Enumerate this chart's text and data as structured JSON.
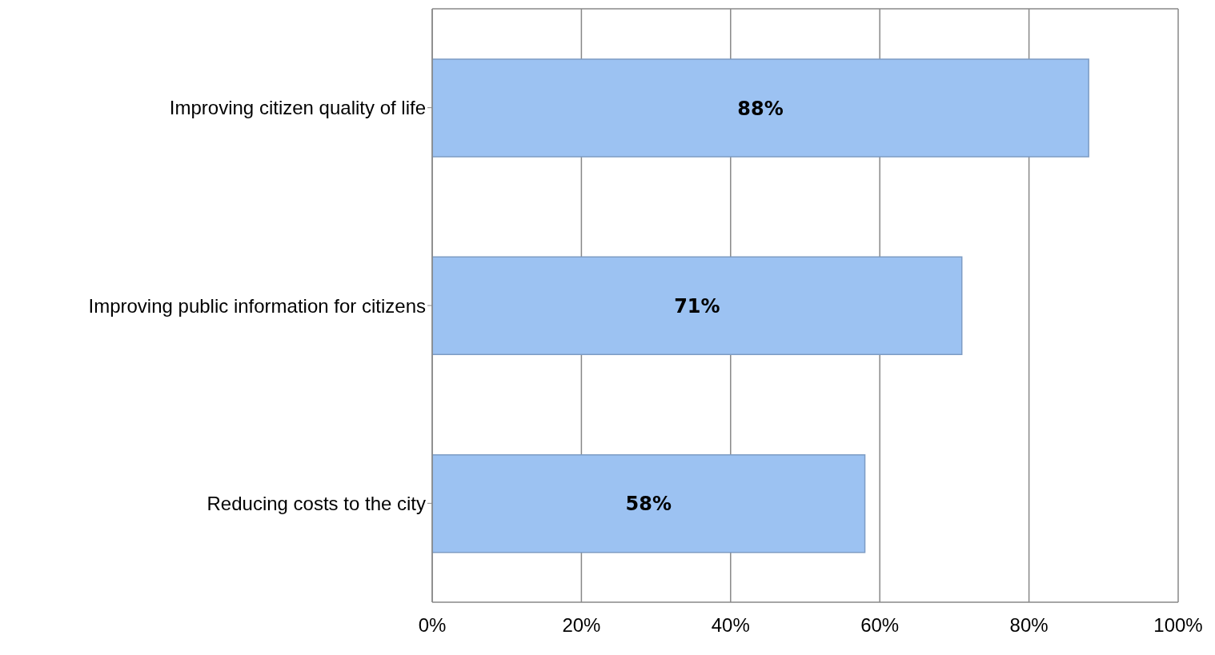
{
  "chart_data": {
    "type": "bar",
    "orientation": "horizontal",
    "categories": [
      "Improving citizen quality of life",
      "Improving public information for citizens",
      "Reducing costs to the city"
    ],
    "values": [
      88,
      71,
      58
    ],
    "color": "#9cc2f2",
    "value_labels": [
      "88%",
      "71%",
      "58%"
    ],
    "xlim": [
      0,
      100
    ],
    "xticks": [
      {
        "value": 0,
        "label": "0%"
      },
      {
        "value": 20,
        "label": "20%"
      },
      {
        "value": 40,
        "label": "40%"
      },
      {
        "value": 60,
        "label": "60%"
      },
      {
        "value": 80,
        "label": "80%"
      },
      {
        "value": 100,
        "label": "100%"
      }
    ],
    "grid": "x"
  }
}
